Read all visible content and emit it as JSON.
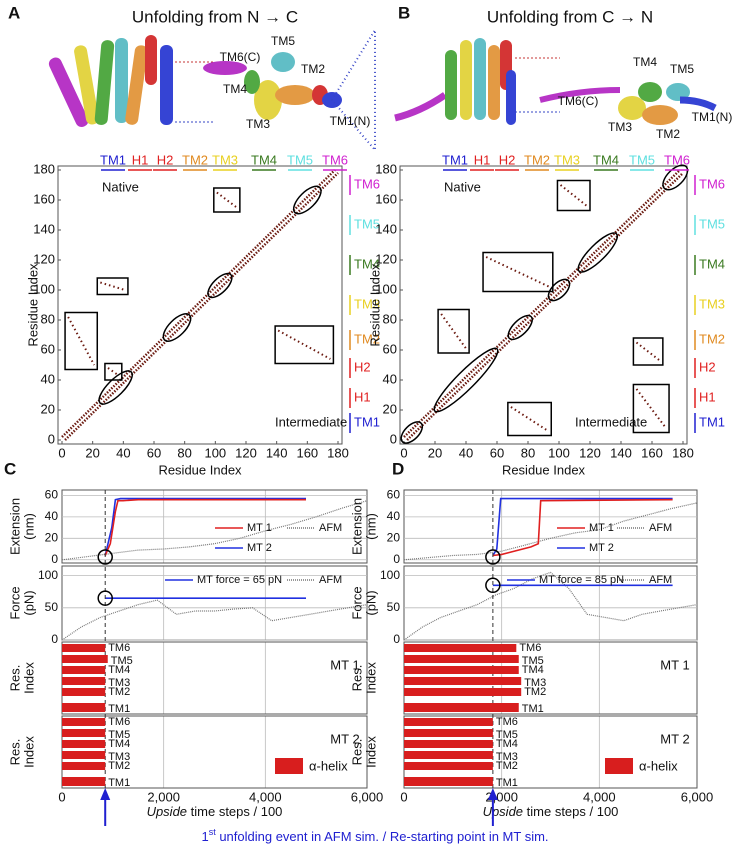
{
  "figure": {
    "panels": [
      {
        "label": "A",
        "title": "Unfolding from N → C",
        "structure_labels": [
          "TM5",
          "TM6(C)",
          "TM2",
          "TM4",
          "TM3",
          "TM1(N)"
        ],
        "contact_map": {
          "top_labels": [
            "TM1",
            "H1",
            "H2",
            "TM2",
            "TM3",
            "TM4",
            "TM5",
            "TM6"
          ],
          "side_labels": [
            "TM6",
            "TM5",
            "TM4",
            "TM3",
            "TM2",
            "H2",
            "H1",
            "TM1"
          ],
          "native": "Native",
          "intermediate": "Intermediate",
          "xlabel": "Residue Index",
          "ylabel": "Residue Index",
          "xlim": [
            0,
            180
          ],
          "ylim": [
            0,
            180
          ],
          "xticks": [
            0,
            20,
            40,
            60,
            80,
            100,
            120,
            140,
            160,
            180
          ],
          "yticks": [
            0,
            20,
            40,
            60,
            80,
            100,
            120,
            140,
            160,
            180
          ]
        }
      },
      {
        "label": "B",
        "title": "Unfolding from C → N",
        "structure_labels": [
          "TM4",
          "TM5",
          "TM6(C)",
          "TM3",
          "TM2",
          "TM1(N)"
        ],
        "contact_map": {
          "top_labels": [
            "TM1",
            "H1",
            "H2",
            "TM2",
            "TM3",
            "TM4",
            "TM5",
            "TM6"
          ],
          "side_labels": [
            "TM6",
            "TM5",
            "TM4",
            "TM3",
            "TM2",
            "H2",
            "H1",
            "TM1"
          ],
          "native": "Native",
          "intermediate": "Intermediate",
          "xlabel": "Residue Index",
          "ylabel": "Residue Index",
          "xlim": [
            0,
            180
          ],
          "ylim": [
            0,
            180
          ],
          "xticks": [
            0,
            20,
            40,
            60,
            80,
            100,
            120,
            140,
            160,
            180
          ],
          "yticks": [
            0,
            20,
            40,
            60,
            80,
            100,
            120,
            140,
            160,
            180
          ]
        }
      }
    ],
    "time_panels": [
      {
        "label": "C",
        "xlim": [
          0,
          6000
        ],
        "xticks": [
          0,
          {
            "value": 2000,
            "label": "2,000"
          },
          {
            "value": 4000,
            "label": "4,000"
          },
          {
            "value": 6000,
            "label": "6,000"
          }
        ],
        "xlabel_em": "Upside",
        "xlabel_rest": " time steps / 100",
        "unfold_time": 850,
        "extension": {
          "ylabel": [
            "Extension",
            "(nm)"
          ],
          "ylim": [
            -3,
            65
          ],
          "yticks": [
            0,
            20,
            40,
            60
          ],
          "series": [
            {
              "name": "MT 1",
              "color": "#e02020",
              "x": [
                850,
                950,
                1050,
                1100,
                1200,
                1500,
                4800
              ],
              "values": [
                4,
                15,
                45,
                55,
                55,
                56,
                56
              ]
            },
            {
              "name": "MT 2",
              "color": "#2030e0",
              "x": [
                850,
                980,
                1050,
                1150,
                4800
              ],
              "values": [
                4,
                30,
                56,
                57,
                57
              ]
            },
            {
              "name": "AFM",
              "color": "#777777",
              "x": [
                0,
                500,
                1000,
                1500,
                2000,
                2500,
                3000,
                3500,
                4000,
                4500,
                5000,
                5500,
                6000
              ],
              "values": [
                0,
                3,
                6,
                9,
                10,
                12,
                15,
                20,
                27,
                33,
                40,
                48,
                55
              ]
            }
          ]
        },
        "force": {
          "ylabel": [
            "Force",
            "(pN)"
          ],
          "ylim": [
            0,
            115
          ],
          "yticks": [
            0,
            50,
            100
          ],
          "series": [
            {
              "name": "MT force = 65 pN",
              "color": "#2030e0",
              "x": [
                850,
                4800
              ],
              "values": [
                65,
                65
              ]
            },
            {
              "name": "AFM",
              "color": "#777777",
              "x": [
                0,
                375,
                750,
                1125,
                1500,
                1875,
                2250,
                2625,
                3000,
                3375,
                3750,
                4125,
                4500,
                4875,
                5250,
                5625,
                6000
              ],
              "values": [
                0,
                20,
                35,
                45,
                55,
                62,
                40,
                45,
                45,
                48,
                50,
                30,
                35,
                40,
                45,
                50,
                55
              ]
            }
          ]
        },
        "mt_panels": [
          {
            "name": "MT 1",
            "ylabel": [
              "Res.",
              "Index"
            ],
            "tm_labels": [
              "TM6",
              "TM5",
              "TM4",
              "TM3",
              "TM2",
              "TM1"
            ],
            "helix_end": [
              850,
              900,
              850,
              850,
              850,
              850
            ]
          },
          {
            "name": "MT 2",
            "ylabel": [
              "Res.",
              "Index"
            ],
            "tm_labels": [
              "TM6",
              "TM5",
              "TM4",
              "TM3",
              "TM2",
              "TM1"
            ],
            "helix_end": [
              850,
              850,
              850,
              850,
              850,
              850
            ],
            "legend": "α-helix"
          }
        ]
      },
      {
        "label": "D",
        "xlim": [
          0,
          6000
        ],
        "xticks": [
          0,
          {
            "value": 2000,
            "label": "2,000"
          },
          {
            "value": 4000,
            "label": "4,000"
          },
          {
            "value": 6000,
            "label": "6,000"
          }
        ],
        "xlabel_em": "Upside",
        "xlabel_rest": " time steps / 100",
        "unfold_time": 1820,
        "extension": {
          "ylabel": [
            "Extension",
            "(nm)"
          ],
          "ylim": [
            -3,
            65
          ],
          "yticks": [
            0,
            20,
            40,
            60
          ],
          "series": [
            {
              "name": "MT 1",
              "color": "#e02020",
              "x": [
                1820,
                2000,
                2600,
                2750,
                2800,
                5500
              ],
              "values": [
                4,
                5,
                12,
                15,
                55,
                56
              ]
            },
            {
              "name": "MT 2",
              "color": "#2030e0",
              "x": [
                1820,
                1900,
                1980,
                5500
              ],
              "values": [
                4,
                10,
                57,
                57
              ]
            },
            {
              "name": "AFM",
              "color": "#777777",
              "x": [
                0,
                500,
                1000,
                1500,
                2000,
                2500,
                3000,
                3500,
                4000,
                4500,
                5000,
                5500,
                6000
              ],
              "values": [
                0,
                2,
                4,
                5,
                8,
                14,
                20,
                25,
                28,
                36,
                42,
                48,
                53
              ]
            }
          ]
        },
        "force": {
          "ylabel": [
            "Force",
            "(pN)"
          ],
          "ylim": [
            0,
            115
          ],
          "yticks": [
            0,
            50,
            100
          ],
          "series": [
            {
              "name": "MT force = 85 pN",
              "color": "#2030e0",
              "x": [
                1820,
                5500
              ],
              "values": [
                85,
                85
              ]
            },
            {
              "name": "AFM",
              "color": "#777777",
              "x": [
                0,
                375,
                750,
                1125,
                1500,
                1875,
                2250,
                2625,
                3000,
                3375,
                3750,
                4125,
                4500,
                4875,
                5250,
                5625,
                6000
              ],
              "values": [
                0,
                20,
                35,
                45,
                55,
                70,
                80,
                95,
                105,
                80,
                40,
                35,
                30,
                40,
                45,
                50,
                55
              ]
            }
          ]
        },
        "mt_panels": [
          {
            "name": "MT 1",
            "ylabel": [
              "Res.",
              "Index"
            ],
            "tm_labels": [
              "TM6",
              "TM5",
              "TM4",
              "TM3",
              "TM2",
              "TM1"
            ],
            "helix_end": [
              2300,
              2350,
              2350,
              2400,
              2400,
              2350
            ]
          },
          {
            "name": "MT 2",
            "ylabel": [
              "Res.",
              "Index"
            ],
            "tm_labels": [
              "TM6",
              "TM5",
              "TM4",
              "TM3",
              "TM2",
              "TM1"
            ],
            "helix_end": [
              1820,
              1820,
              1820,
              1820,
              1820,
              1820
            ],
            "legend": "α-helix"
          }
        ]
      }
    ],
    "footnote": {
      "num": "1",
      "sup": "st",
      "rest": " unfolding event in AFM sim. / Re-starting point in MT sim."
    }
  }
}
